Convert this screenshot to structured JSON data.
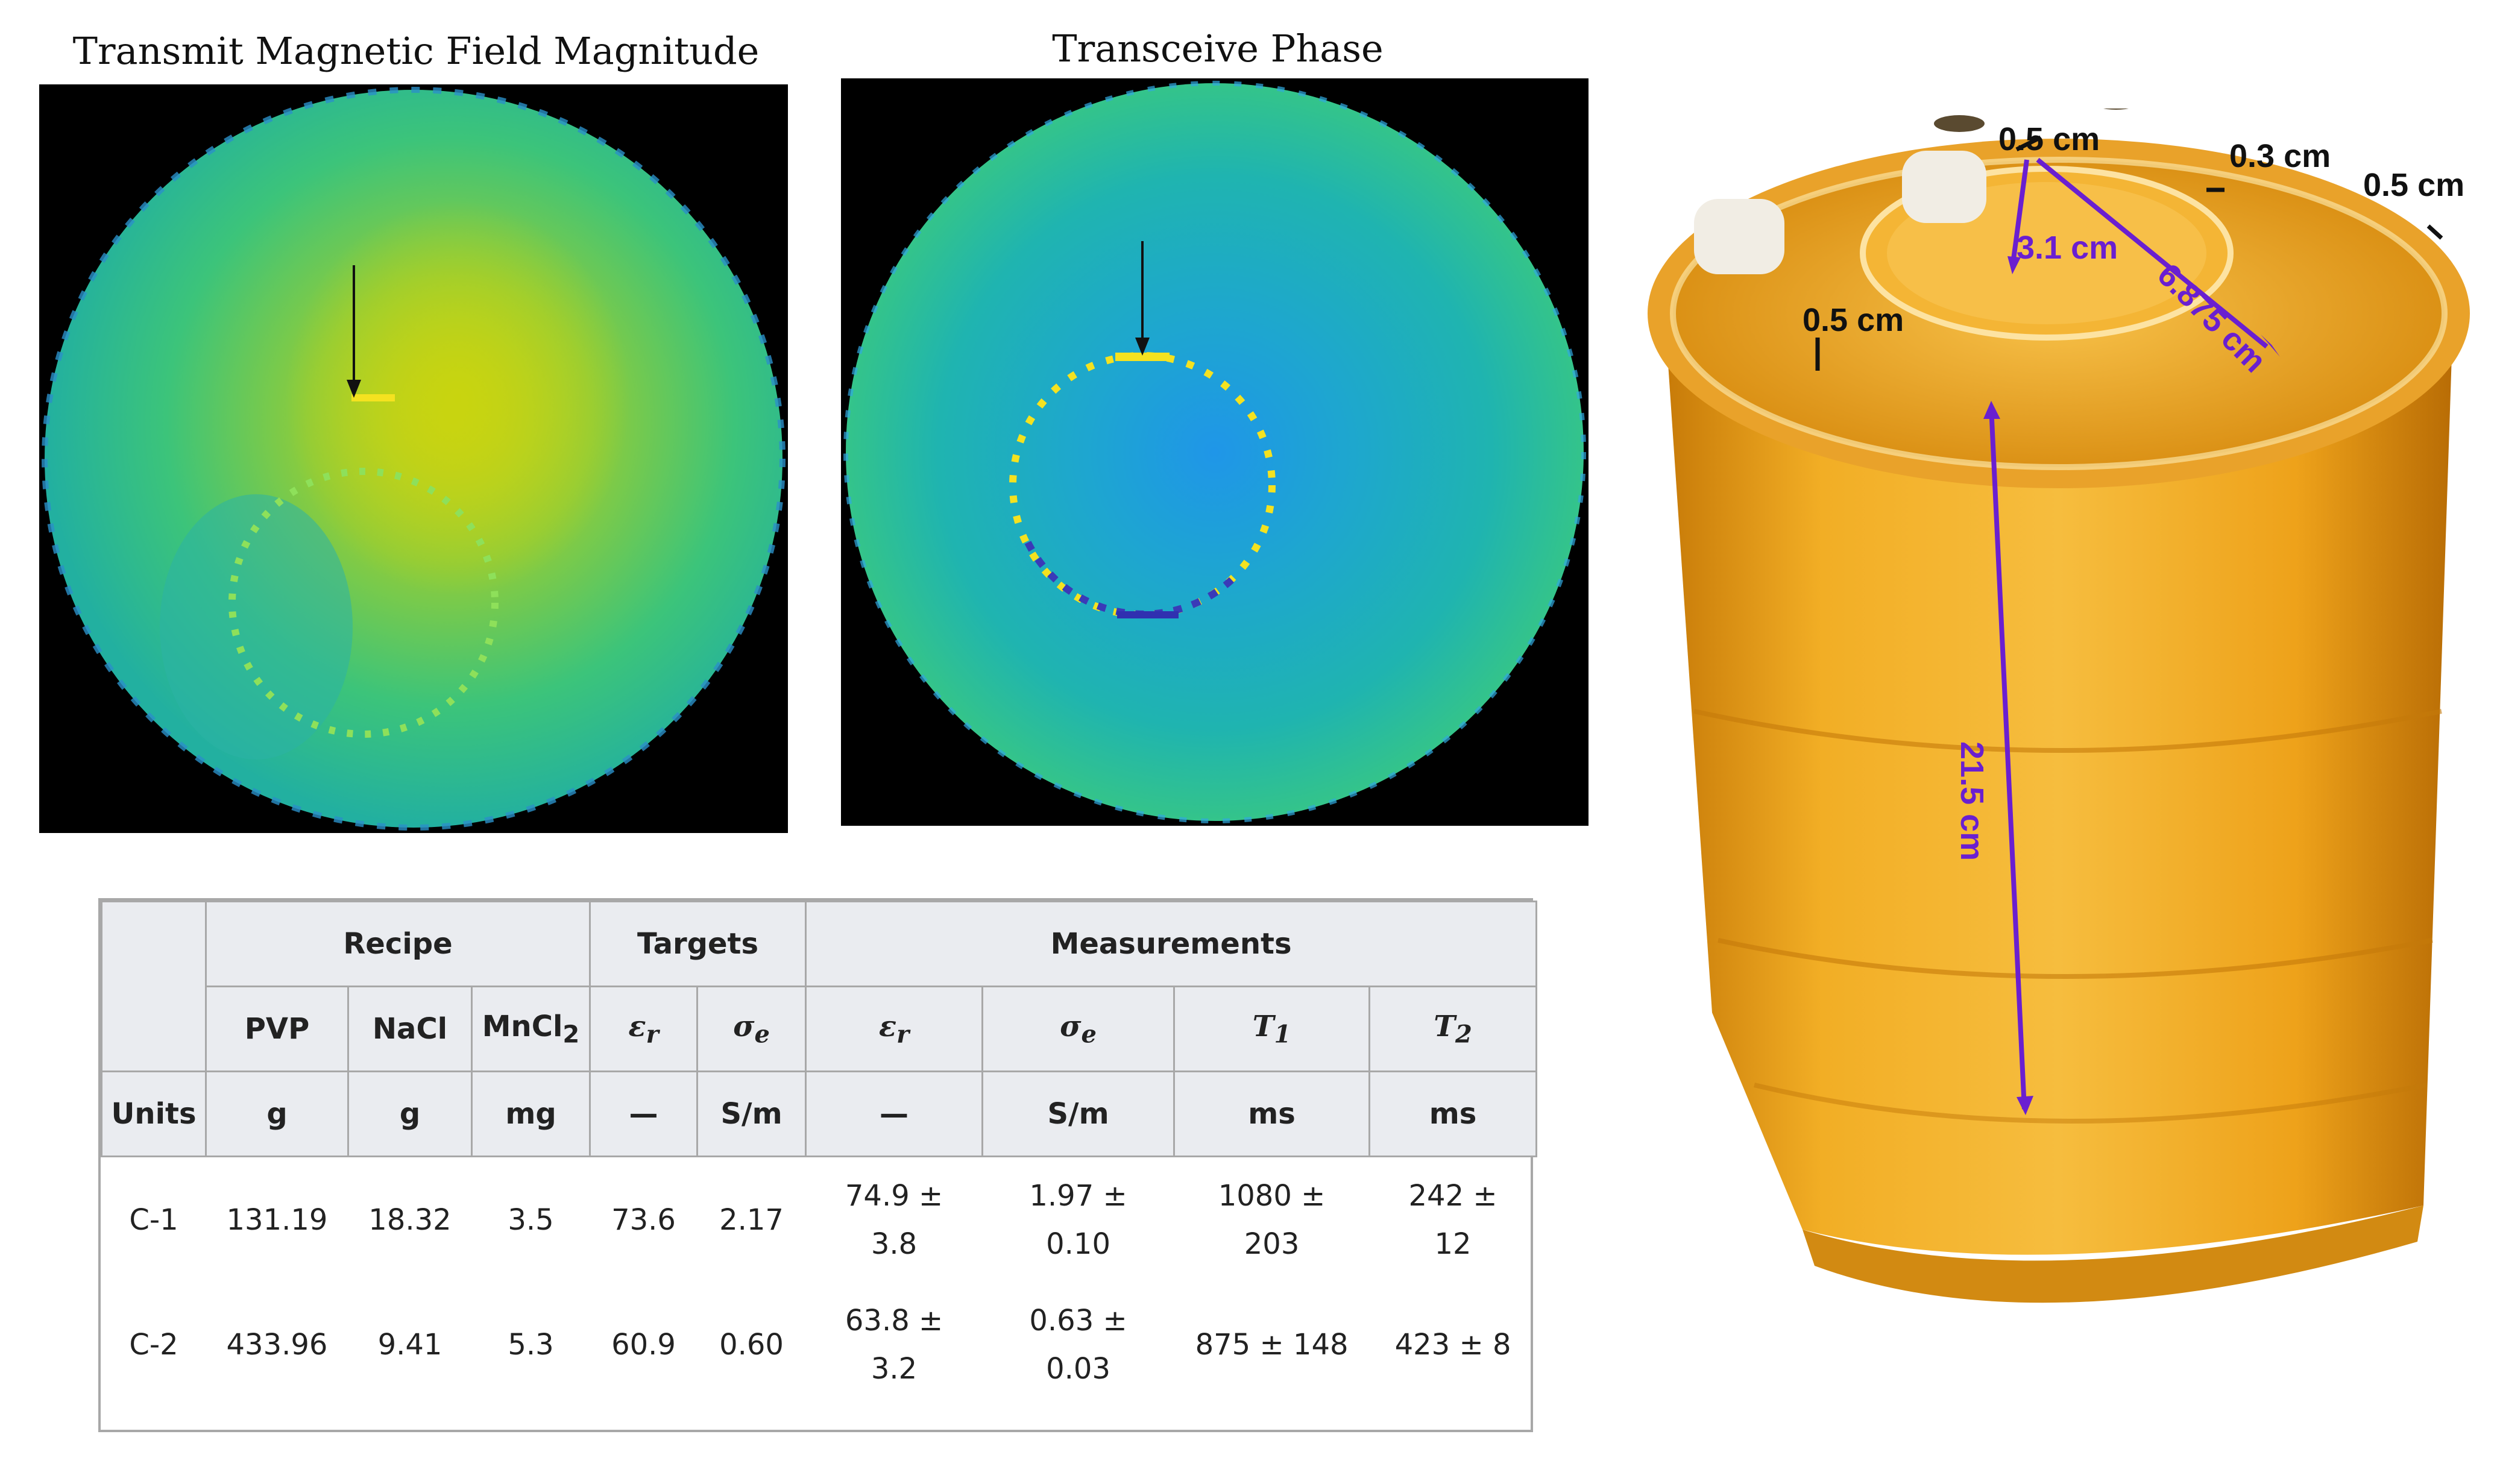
{
  "left_figure": {
    "title": "Transmit Magnetic Field Magnitude"
  },
  "middle_figure": {
    "title": "Transceive Phase"
  },
  "table": {
    "groups": {
      "recipe": "Recipe",
      "targets": "Targets",
      "measurements": "Measurements"
    },
    "columns": {
      "pvp": "PVP",
      "nacl": "NaCl",
      "mncl_base": "MnCl",
      "mncl_sub": "2",
      "target_eps_sym": "ε",
      "target_eps_sub": "r",
      "target_sig_sym": "σ",
      "target_sig_sub": "e",
      "meas_eps_sym": "ε",
      "meas_eps_sub": "r",
      "meas_sig_sym": "σ",
      "meas_sig_sub": "e",
      "t1_sym": "T",
      "t1_sub": "1",
      "t2_sym": "T",
      "t2_sub": "2"
    },
    "units": {
      "label": "Units",
      "pvp": "g",
      "nacl": "g",
      "mncl": "mg",
      "target_eps": "—",
      "target_sig": "S/m",
      "meas_eps": "—",
      "meas_sig": "S/m",
      "t1": "ms",
      "t2": "ms"
    },
    "rows": [
      {
        "name": "C-1",
        "pvp": "131.19",
        "nacl": "18.32",
        "mncl": "3.5",
        "target_eps": "73.6",
        "target_sig": "2.17",
        "meas_eps_a": "74.9 ±",
        "meas_eps_b": "3.8",
        "meas_sig_a": "1.97 ±",
        "meas_sig_b": "0.10",
        "t1_a": "1080 ±",
        "t1_b": "203",
        "t2_a": "242 ±",
        "t2_b": "12"
      },
      {
        "name": "C-2",
        "pvp": "433.96",
        "nacl": "9.41",
        "mncl": "5.3",
        "target_eps": "60.9",
        "target_sig": "0.60",
        "meas_eps_a": "63.8 ±",
        "meas_eps_b": "3.2",
        "meas_sig_a": "0.63 ±",
        "meas_sig_b": "0.03",
        "t1_a": "875 ± 148",
        "t1_b": "",
        "t2_a": "423 ± 8",
        "t2_b": ""
      }
    ]
  },
  "photo": {
    "labels": {
      "inner_wall": "0.5 cm",
      "gap": "0.3 cm",
      "outer_wall": "0.5 cm",
      "inner_radius": "3.1 cm",
      "outer_radius": "6.875 cm",
      "lid": "0.5 cm",
      "height": "21.5 cm"
    },
    "colors": {
      "dimension": "#6a1fd0",
      "thickness": "#111111",
      "liquid": "#f0a516"
    }
  }
}
